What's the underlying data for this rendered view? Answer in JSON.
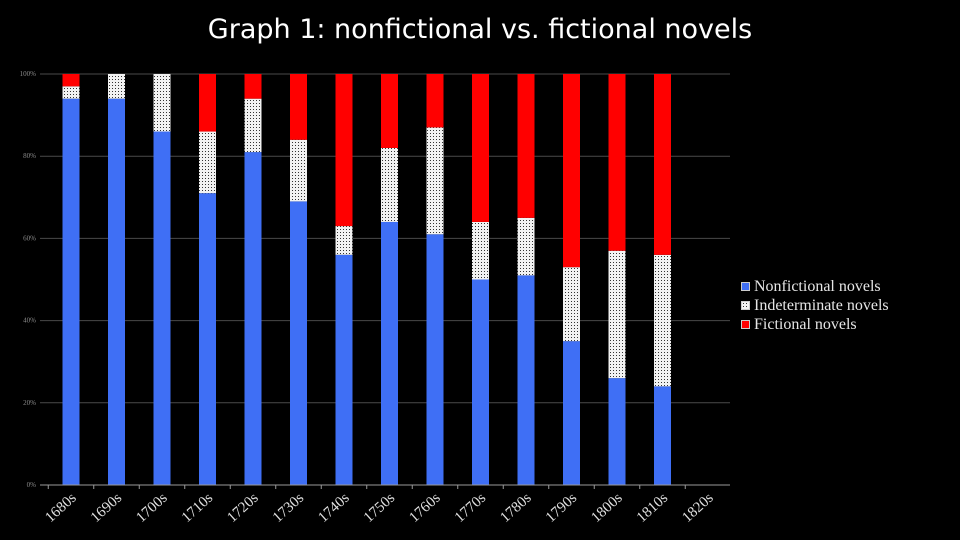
{
  "slide": {
    "title": "Graph 1: nonfictional vs. fictional novels"
  },
  "chart_data": {
    "type": "bar",
    "stacked": true,
    "title": "",
    "xlabel": "",
    "ylabel": "",
    "ylim": [
      0,
      100
    ],
    "y_ticks": [
      "0%",
      "20%",
      "40%",
      "60%",
      "80%",
      "100%"
    ],
    "categories": [
      "1680s",
      "1690s",
      "1700s",
      "1710s",
      "1720s",
      "1730s",
      "1740s",
      "1750s",
      "1760s",
      "1770s",
      "1780s",
      "1790s",
      "1800s",
      "1810s",
      "1820s"
    ],
    "series": [
      {
        "name": "Nonfictional novels",
        "color": "#3f6ff5",
        "pattern": "solid",
        "values": [
          94,
          94,
          86,
          71,
          81,
          69,
          56,
          64,
          61,
          50,
          51,
          35,
          26,
          24,
          null
        ]
      },
      {
        "name": "Indeterminate novels",
        "color": "#ffffff",
        "pattern": "dotted",
        "values": [
          3,
          6,
          14,
          15,
          13,
          15,
          7,
          18,
          26,
          14,
          14,
          18,
          31,
          32,
          null
        ]
      },
      {
        "name": "Fictional novels",
        "color": "#ff0000",
        "pattern": "solid",
        "values": [
          3,
          0,
          0,
          14,
          6,
          16,
          37,
          18,
          13,
          36,
          35,
          47,
          43,
          44,
          null
        ]
      }
    ],
    "grid": true,
    "legend_position": "right"
  }
}
